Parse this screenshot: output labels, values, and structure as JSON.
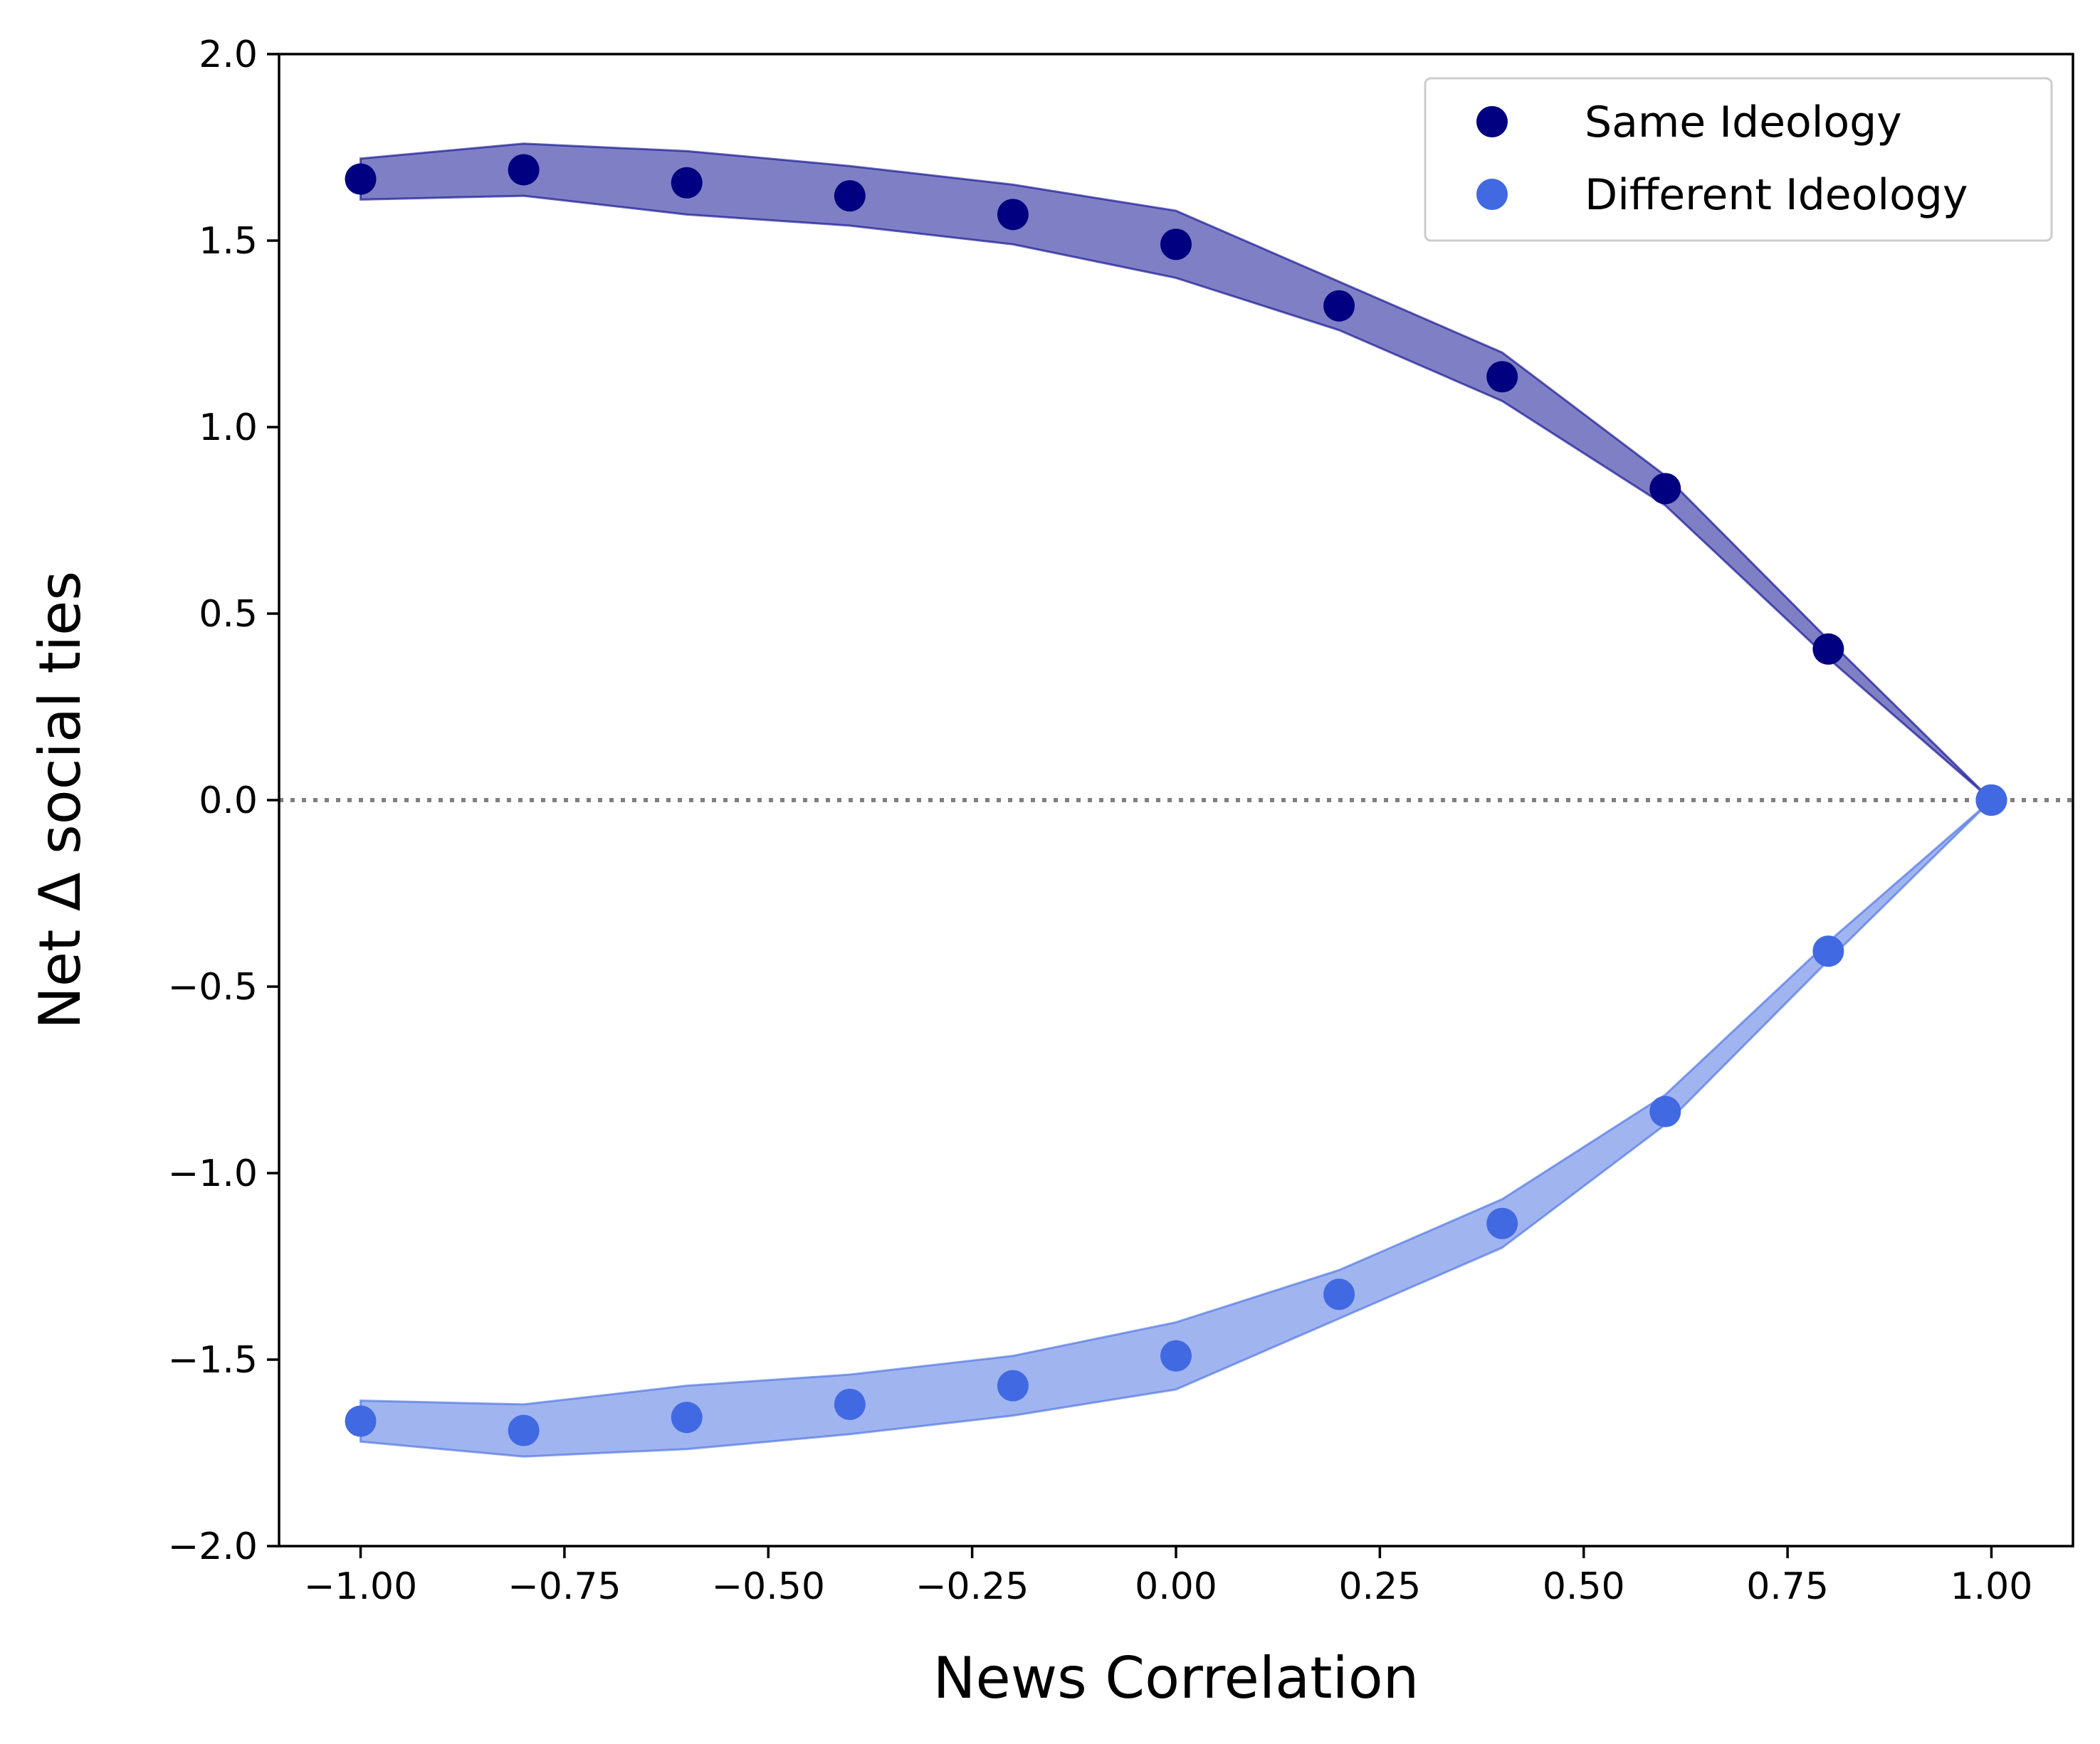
{
  "chart_data": {
    "type": "scatter",
    "title": "",
    "xlabel": "News Correlation",
    "ylabel": "Net Δ social ties",
    "xlim": [
      -1.1,
      1.1
    ],
    "ylim": [
      -2.0,
      2.0
    ],
    "xticks": [
      -1.0,
      -0.75,
      -0.5,
      -0.25,
      0.0,
      0.25,
      0.5,
      0.75,
      1.0
    ],
    "xtick_labels": [
      "−1.00",
      "−0.75",
      "−0.50",
      "−0.25",
      "0.00",
      "0.25",
      "0.50",
      "0.75",
      "1.00"
    ],
    "yticks": [
      -2.0,
      -1.5,
      -1.0,
      -0.5,
      0.0,
      0.5,
      1.0,
      1.5,
      2.0
    ],
    "ytick_labels": [
      "−2.0",
      "−1.5",
      "−1.0",
      "−0.5",
      "0.0",
      "0.5",
      "1.0",
      "1.5",
      "2.0"
    ],
    "grid": false,
    "legend_position": "top-right",
    "reference_line": {
      "y": 0.0,
      "style": "dotted",
      "color": "#808080"
    },
    "x": [
      -1.0,
      -0.8,
      -0.6,
      -0.4,
      -0.2,
      0.0,
      0.2,
      0.4,
      0.6,
      0.8,
      1.0
    ],
    "series": [
      {
        "name": "Same Ideology",
        "color": "#000080",
        "band_color": "#00008b",
        "values": [
          1.665,
          1.69,
          1.655,
          1.62,
          1.57,
          1.49,
          1.325,
          1.135,
          0.835,
          0.405,
          0.0
        ],
        "band_upper": [
          1.72,
          1.76,
          1.74,
          1.7,
          1.65,
          1.58,
          1.39,
          1.2,
          0.87,
          0.43,
          0.0
        ],
        "band_lower": [
          1.61,
          1.62,
          1.57,
          1.54,
          1.49,
          1.4,
          1.26,
          1.07,
          0.79,
          0.38,
          0.0
        ]
      },
      {
        "name": "Different Ideology",
        "color": "#4169e1",
        "band_color": "#4169e1",
        "values": [
          -1.665,
          -1.69,
          -1.655,
          -1.62,
          -1.57,
          -1.49,
          -1.325,
          -1.135,
          -0.835,
          -0.405,
          0.0
        ],
        "band_upper": [
          -1.61,
          -1.62,
          -1.57,
          -1.54,
          -1.49,
          -1.4,
          -1.26,
          -1.07,
          -0.79,
          -0.38,
          0.0
        ],
        "band_lower": [
          -1.72,
          -1.76,
          -1.74,
          -1.7,
          -1.65,
          -1.58,
          -1.39,
          -1.2,
          -0.87,
          -0.43,
          0.0
        ]
      }
    ]
  }
}
